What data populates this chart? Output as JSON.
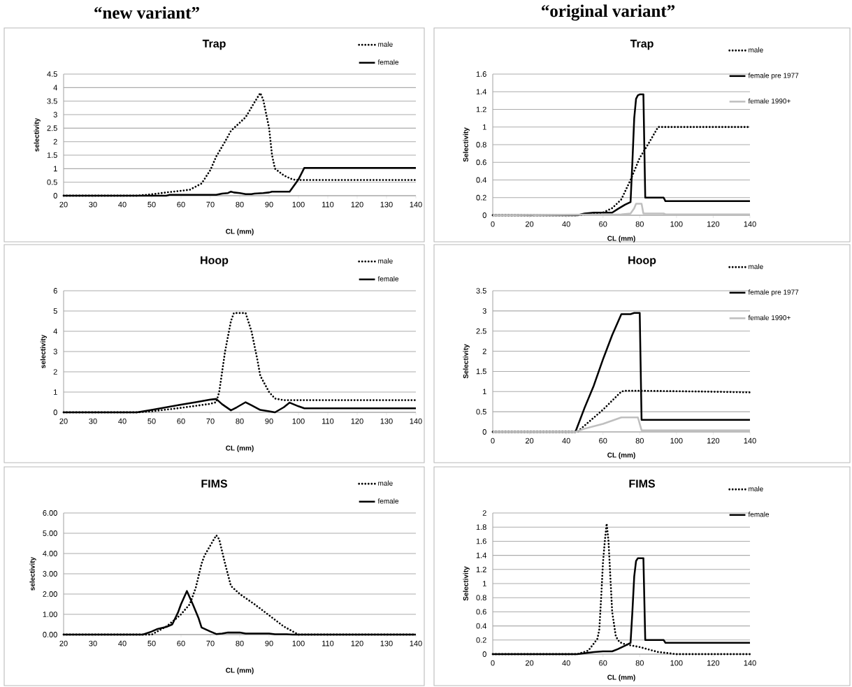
{
  "chart_data": [
    {
      "type": "line",
      "title": "Trap",
      "xlabel": "CL (mm)",
      "ylabel": "selectivity",
      "annotations": [
        "“new variant”"
      ],
      "xlim": [
        20,
        140
      ],
      "ylim": [
        0,
        4.5
      ],
      "xticks": [
        20,
        30,
        40,
        50,
        60,
        70,
        80,
        90,
        100,
        110,
        120,
        130,
        140
      ],
      "yticks": [
        0,
        0.5,
        1,
        1.5,
        2,
        2.5,
        3,
        3.5,
        4,
        4.5
      ],
      "grid": "y",
      "legend": "top right",
      "series": [
        {
          "name": "male",
          "color": "#000000",
          "line_style": "dotted",
          "x": [
            20,
            45,
            50,
            55,
            60,
            63,
            67,
            70,
            72,
            75,
            77,
            80,
            82,
            85,
            87,
            88,
            90,
            91,
            92,
            95,
            98,
            100,
            140
          ],
          "values": [
            0,
            0,
            0.05,
            0.12,
            0.18,
            0.22,
            0.45,
            0.95,
            1.45,
            2.0,
            2.4,
            2.7,
            2.9,
            3.45,
            3.8,
            3.55,
            2.5,
            1.5,
            1.0,
            0.75,
            0.6,
            0.58,
            0.58
          ]
        },
        {
          "name": "female",
          "color": "#000000",
          "line_style": "solid",
          "x": [
            20,
            55,
            56,
            72,
            74,
            76,
            77,
            78,
            80,
            82,
            84,
            85,
            88,
            90,
            91,
            97,
            100,
            102,
            140
          ],
          "values": [
            0,
            0,
            0.03,
            0.03,
            0.08,
            0.1,
            0.15,
            0.12,
            0.1,
            0.06,
            0.06,
            0.08,
            0.1,
            0.12,
            0.15,
            0.15,
            0.6,
            1.03,
            1.03
          ]
        }
      ]
    },
    {
      "type": "line",
      "title": "Trap",
      "xlabel": "CL (mm)",
      "ylabel": "Selectivity",
      "annotations": [
        "“original variant”"
      ],
      "xlim": [
        0,
        140
      ],
      "ylim": [
        0,
        1.6
      ],
      "xticks": [
        0,
        20,
        40,
        60,
        80,
        100,
        120,
        140
      ],
      "yticks": [
        0,
        0.2,
        0.4,
        0.6,
        0.8,
        1,
        1.2,
        1.4,
        1.6
      ],
      "grid": "y",
      "legend": "right",
      "series": [
        {
          "name": "male",
          "color": "#000000",
          "line_style": "dotted",
          "x": [
            0,
            46,
            60,
            65,
            70,
            75,
            80,
            85,
            90,
            140
          ],
          "values": [
            0,
            0,
            0.03,
            0.08,
            0.18,
            0.4,
            0.65,
            0.82,
            1.0,
            1.0
          ]
        },
        {
          "name": "female pre 1977",
          "color": "#000000",
          "line_style": "solid",
          "x": [
            0,
            46,
            50,
            55,
            65,
            68,
            72,
            75,
            76,
            77,
            78,
            79,
            80,
            82,
            83,
            93,
            94,
            140
          ],
          "values": [
            0,
            0,
            0.02,
            0.03,
            0.03,
            0.07,
            0.12,
            0.15,
            0.6,
            1.1,
            1.32,
            1.36,
            1.37,
            1.37,
            0.2,
            0.2,
            0.16,
            0.16
          ]
        },
        {
          "name": "female 1990+",
          "color": "#bfbfbf",
          "line_style": "solid",
          "x": [
            0,
            70,
            75,
            77,
            78,
            81,
            82,
            93,
            94,
            140
          ],
          "values": [
            0,
            0.01,
            0.02,
            0.08,
            0.13,
            0.13,
            0.02,
            0.02,
            0.01,
            0.01
          ]
        }
      ]
    },
    {
      "type": "line",
      "title": "Hoop",
      "xlabel": "CL (mm)",
      "ylabel": "selectivity",
      "xlim": [
        20,
        140
      ],
      "ylim": [
        0,
        6
      ],
      "xticks": [
        20,
        30,
        40,
        50,
        60,
        70,
        80,
        90,
        100,
        110,
        120,
        130,
        140
      ],
      "yticks": [
        0,
        1,
        2,
        3,
        4,
        5,
        6
      ],
      "grid": "y",
      "legend": "top right",
      "series": [
        {
          "name": "male",
          "color": "#000000",
          "line_style": "dotted",
          "x": [
            20,
            45,
            50,
            60,
            70,
            72,
            73,
            75,
            77,
            78,
            82,
            84,
            86,
            87,
            90,
            92,
            95,
            140
          ],
          "values": [
            0,
            0,
            0.05,
            0.22,
            0.42,
            0.5,
            1.0,
            3.0,
            4.5,
            4.9,
            4.9,
            4.0,
            2.6,
            1.8,
            1.0,
            0.68,
            0.6,
            0.6
          ]
        },
        {
          "name": "female",
          "color": "#000000",
          "line_style": "solid",
          "x": [
            20,
            45,
            50,
            55,
            60,
            65,
            70,
            72,
            74,
            77,
            79,
            82,
            84,
            87,
            90,
            92,
            95,
            97,
            100,
            102,
            140
          ],
          "values": [
            0,
            0,
            0.12,
            0.25,
            0.38,
            0.5,
            0.63,
            0.66,
            0.4,
            0.1,
            0.25,
            0.5,
            0.35,
            0.12,
            0.05,
            0,
            0.25,
            0.48,
            0.3,
            0.2,
            0.2
          ]
        }
      ]
    },
    {
      "type": "line",
      "title": "Hoop",
      "xlabel": "CL (mm)",
      "ylabel": "Selectivity",
      "xlim": [
        0,
        140
      ],
      "ylim": [
        0,
        3.5
      ],
      "xticks": [
        0,
        20,
        40,
        60,
        80,
        100,
        120,
        140
      ],
      "yticks": [
        0,
        0.5,
        1,
        1.5,
        2,
        2.5,
        3,
        3.5
      ],
      "grid": "y",
      "legend": "right",
      "series": [
        {
          "name": "male",
          "color": "#000000",
          "line_style": "dotted",
          "x": [
            0,
            46,
            60,
            70,
            72,
            80,
            115,
            140
          ],
          "values": [
            0,
            0,
            0.55,
            1.0,
            1.02,
            1.02,
            1.0,
            0.98
          ]
        },
        {
          "name": "female pre 1977",
          "color": "#000000",
          "line_style": "solid",
          "x": [
            0,
            45,
            50,
            55,
            60,
            65,
            70,
            75,
            77,
            80,
            81,
            140
          ],
          "values": [
            0,
            0,
            0.6,
            1.15,
            1.8,
            2.4,
            2.92,
            2.92,
            2.95,
            2.95,
            0.3,
            0.3
          ]
        },
        {
          "name": "female 1990+",
          "color": "#bfbfbf",
          "line_style": "solid",
          "x": [
            0,
            45,
            50,
            60,
            70,
            79,
            81,
            140
          ],
          "values": [
            0,
            0,
            0.08,
            0.2,
            0.36,
            0.36,
            0.04,
            0.04
          ]
        }
      ]
    },
    {
      "type": "line",
      "title": "FIMS",
      "xlabel": "CL (mm)",
      "ylabel": "selectivity",
      "xlim": [
        20,
        140
      ],
      "ylim": [
        0,
        6
      ],
      "xticks": [
        20,
        30,
        40,
        50,
        60,
        70,
        80,
        90,
        100,
        110,
        120,
        130,
        140
      ],
      "yticks": [
        {
          "value": 0,
          "label": "0.00"
        },
        {
          "value": 1,
          "label": "1.00"
        },
        {
          "value": 2,
          "label": "2.00"
        },
        {
          "value": 3,
          "label": "3.00"
        },
        {
          "value": 4,
          "label": "4.00"
        },
        {
          "value": 5,
          "label": "5.00"
        },
        {
          "value": 6,
          "label": "6.00"
        }
      ],
      "grid": "y",
      "legend": "top right",
      "series": [
        {
          "name": "male",
          "color": "#000000",
          "line_style": "dotted",
          "x": [
            20,
            50,
            55,
            58,
            60,
            63,
            65,
            67,
            68,
            70,
            72,
            73,
            75,
            77,
            80,
            85,
            90,
            95,
            100,
            140
          ],
          "values": [
            0,
            0,
            0.4,
            0.75,
            1.0,
            1.5,
            2.3,
            3.5,
            3.9,
            4.4,
            4.9,
            4.7,
            3.5,
            2.4,
            2.0,
            1.5,
            0.95,
            0.4,
            0,
            0
          ]
        },
        {
          "name": "female",
          "color": "#000000",
          "line_style": "solid",
          "x": [
            20,
            47,
            50,
            52,
            55,
            57,
            59,
            60,
            62,
            64,
            66,
            67,
            70,
            72,
            74,
            76,
            80,
            82,
            90,
            92,
            96,
            98,
            140
          ],
          "values": [
            0,
            0,
            0.15,
            0.28,
            0.38,
            0.5,
            1.1,
            1.5,
            2.15,
            1.5,
            0.8,
            0.35,
            0.15,
            0.03,
            0.05,
            0.1,
            0.1,
            0.05,
            0.05,
            0.02,
            0.02,
            0,
            0
          ]
        }
      ]
    },
    {
      "type": "line",
      "title": "FIMS",
      "xlabel": "CL (mm)",
      "ylabel": "Selectivity",
      "xlim": [
        0,
        140
      ],
      "ylim": [
        0,
        2
      ],
      "xticks": [
        0,
        20,
        40,
        60,
        80,
        100,
        120,
        140
      ],
      "yticks": [
        0,
        0.2,
        0.4,
        0.6,
        0.8,
        1,
        1.2,
        1.4,
        1.6,
        1.8,
        2
      ],
      "grid": "y",
      "legend": "right",
      "series": [
        {
          "name": "male",
          "color": "#000000",
          "line_style": "dotted",
          "x": [
            0,
            46,
            52,
            55,
            57,
            58,
            59,
            60,
            61,
            62,
            63,
            64,
            65,
            67,
            69,
            72,
            80,
            90,
            100,
            140
          ],
          "values": [
            0,
            0,
            0.05,
            0.15,
            0.22,
            0.35,
            0.8,
            1.3,
            1.6,
            1.85,
            1.6,
            1.1,
            0.6,
            0.25,
            0.17,
            0.14,
            0.1,
            0.03,
            0,
            0
          ]
        },
        {
          "name": "female",
          "color": "#000000",
          "line_style": "solid",
          "x": [
            0,
            46,
            52,
            55,
            60,
            65,
            68,
            72,
            75,
            76,
            77,
            78,
            79,
            80,
            82,
            83,
            93,
            94,
            140
          ],
          "values": [
            0,
            0,
            0.02,
            0.03,
            0.04,
            0.04,
            0.07,
            0.12,
            0.16,
            0.6,
            1.1,
            1.32,
            1.36,
            1.36,
            1.36,
            0.2,
            0.2,
            0.16,
            0.16
          ]
        }
      ]
    }
  ]
}
